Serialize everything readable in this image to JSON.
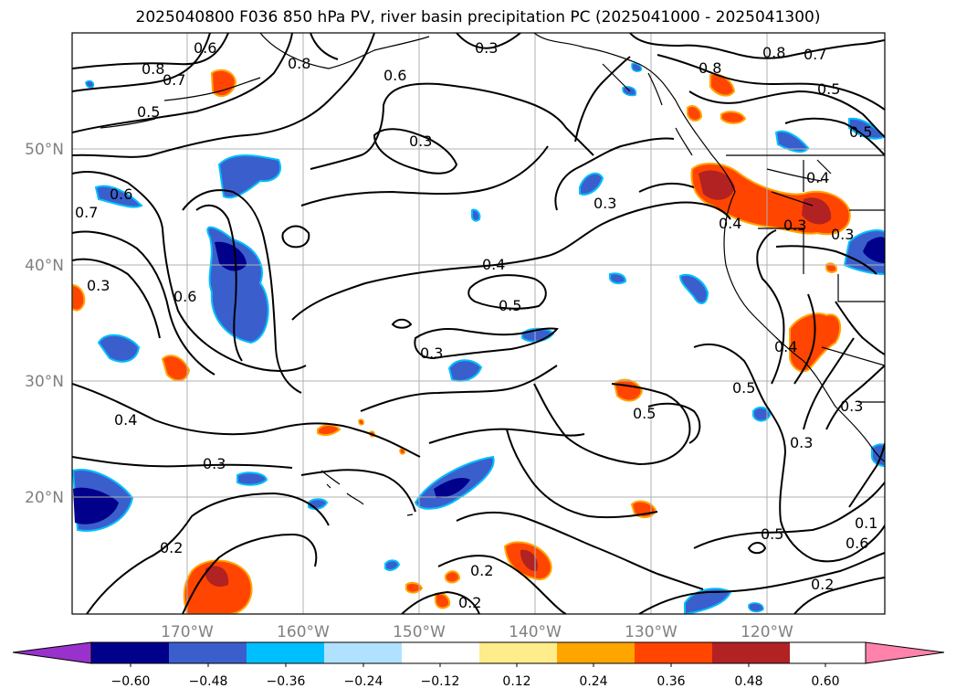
{
  "title": "2025040800 F036 850 hPa PV, river basin precipitation PC (2025041000 - 2025041300)",
  "lat_labels": [
    "50°N",
    "40°N",
    "30°N",
    "20°N"
  ],
  "lon_labels": [
    "170°W",
    "160°W",
    "150°W",
    "140°W",
    "130°W",
    "120°W"
  ],
  "colorbar": {
    "ticks": [
      "−0.60",
      "−0.48",
      "−0.36",
      "−0.24",
      "−0.12",
      "0.12",
      "0.24",
      "0.36",
      "0.48",
      "0.60"
    ],
    "colors": [
      "#9932cc",
      "#00008b",
      "#3a5fcd",
      "#00bfff",
      "#b0e2ff",
      "#ffffff",
      "#ffec8b",
      "#ffa500",
      "#ff4500",
      "#b22222",
      "#ff82ab"
    ]
  },
  "contour_labels": [
    "0.8",
    "0.7",
    "0.6",
    "0.8",
    "0.6",
    "0.3",
    "0.5",
    "0.6",
    "0.7",
    "0.3",
    "0.3",
    "0.4",
    "0.8",
    "0.7",
    "0.5",
    "0.5",
    "0.8",
    "0.4",
    "0.4",
    "0.3",
    "0.3",
    "0.6",
    "0.4",
    "0.5",
    "0.3",
    "0.3",
    "0.5",
    "0.5",
    "0.4",
    "0.3",
    "0.3",
    "0.2",
    "0.2",
    "0.2",
    "0.3",
    "0.5",
    "0.6",
    "0.2",
    "0.1"
  ],
  "colors": {
    "contour": "#000000",
    "grid": "#b0b0b0",
    "coast": "#000000"
  }
}
